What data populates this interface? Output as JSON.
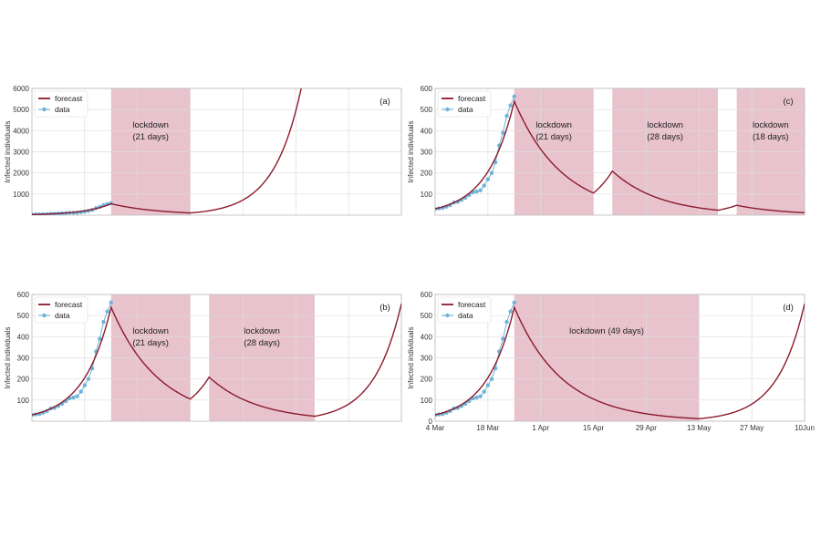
{
  "colors": {
    "forecast": "#8b1a2b",
    "data": "#6fb3d8",
    "lockdown": "#e8c3cd",
    "grid": "#dddddd"
  },
  "chart_data": [
    {
      "type": "line",
      "panel": "(a)",
      "ylabel": "Infected individuals",
      "ylim": [
        0,
        6000
      ],
      "yticks": [
        1000,
        2000,
        3000,
        4000,
        5000,
        6000
      ],
      "xlim_days": [
        0,
        98
      ],
      "xticklabels": [],
      "legend": {
        "placement": "top-left",
        "entries": [
          "forecast",
          "data"
        ]
      },
      "lockdowns": [
        {
          "start_day": 21,
          "end_day": 42,
          "label_line1": "lockdown",
          "label_line2": "(21 days)"
        }
      ],
      "growth_rate": 0.1376,
      "decay_rate": -0.078,
      "start_value": 30
    },
    {
      "type": "line",
      "panel": "(c)",
      "ylabel": "Infected individuals",
      "ylim": [
        0,
        600
      ],
      "yticks": [
        100,
        200,
        300,
        400,
        500,
        600
      ],
      "xlim_days": [
        0,
        98
      ],
      "xticklabels": [],
      "legend": {
        "placement": "top-left",
        "entries": [
          "forecast",
          "data"
        ]
      },
      "lockdowns": [
        {
          "start_day": 21,
          "end_day": 42,
          "label_line1": "lockdown",
          "label_line2": "(21 days)"
        },
        {
          "start_day": 47,
          "end_day": 75,
          "label_line1": "lockdown",
          "label_line2": "(28 days)"
        },
        {
          "start_day": 80,
          "end_day": 98,
          "label_line1": "lockdown",
          "label_line2": "(18 days)"
        }
      ],
      "growth_rate": 0.1376,
      "decay_rate": -0.078,
      "start_value": 30
    },
    {
      "type": "line",
      "panel": "(b)",
      "ylabel": "Infected individuals",
      "ylim": [
        0,
        600
      ],
      "yticks": [
        100,
        200,
        300,
        400,
        500,
        600
      ],
      "xlim_days": [
        0,
        98
      ],
      "xticklabels": [],
      "legend": {
        "placement": "top-left",
        "entries": [
          "forecast",
          "data"
        ]
      },
      "lockdowns": [
        {
          "start_day": 21,
          "end_day": 42,
          "label_line1": "lockdown",
          "label_line2": "(21 days)"
        },
        {
          "start_day": 47,
          "end_day": 75,
          "label_line1": "lockdown",
          "label_line2": "(28 days)"
        }
      ],
      "growth_rate": 0.1376,
      "decay_rate": -0.078,
      "start_value": 30
    },
    {
      "type": "line",
      "panel": "(d)",
      "ylabel": "Infected individuals",
      "ylim": [
        0,
        600
      ],
      "yticks": [
        0,
        100,
        200,
        300,
        400,
        500,
        600
      ],
      "xlim_days": [
        0,
        98
      ],
      "xticklabels": [
        "4 Mar",
        "18 Mar",
        "1 Apr",
        "15 Apr",
        "29 Apr",
        "13 May",
        "27 May",
        "10Jun"
      ],
      "legend": {
        "placement": "top-left",
        "entries": [
          "forecast",
          "data"
        ]
      },
      "lockdowns": [
        {
          "start_day": 21,
          "end_day": 70,
          "label_line1": "lockdown (49 days)",
          "label_line2": ""
        }
      ],
      "growth_rate": 0.1376,
      "decay_rate": -0.078,
      "start_value": 30
    }
  ],
  "data_series": {
    "days": [
      0,
      1,
      2,
      3,
      4,
      5,
      6,
      7,
      8,
      9,
      10,
      11,
      12,
      13,
      14,
      15,
      16,
      17,
      18,
      19,
      20,
      21
    ],
    "values": [
      30,
      32,
      34,
      40,
      48,
      60,
      63,
      72,
      82,
      95,
      108,
      112,
      118,
      140,
      170,
      200,
      250,
      330,
      390,
      470,
      520,
      562
    ]
  }
}
